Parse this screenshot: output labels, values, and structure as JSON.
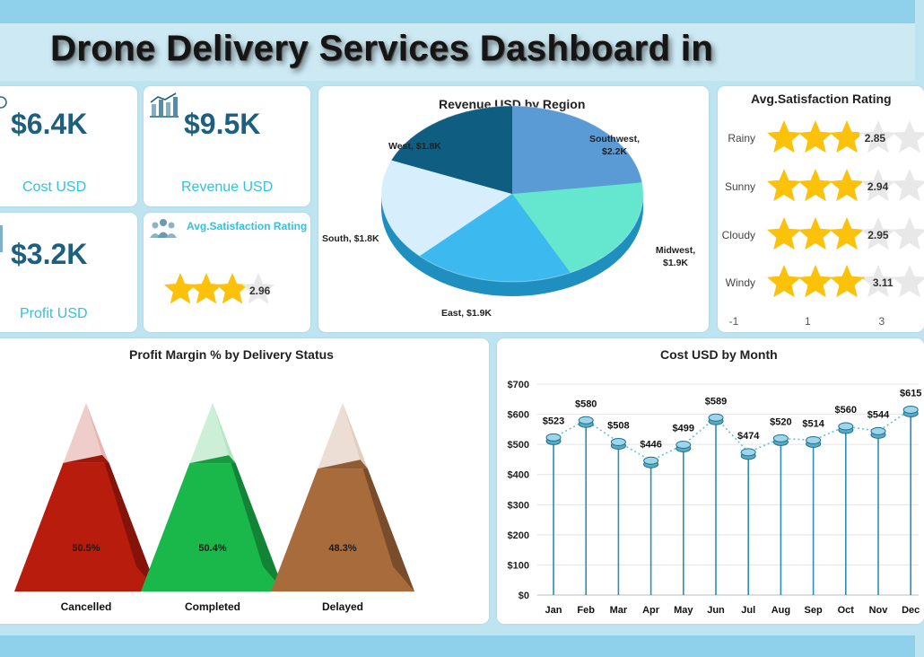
{
  "header": {
    "title": "Drone Delivery Services Dashboard in"
  },
  "kpis": {
    "cost": {
      "value": "$6.4K",
      "label": "Cost USD"
    },
    "revenue": {
      "value": "$9.5K",
      "label": "Revenue USD"
    },
    "profit": {
      "value": "$3.2K",
      "label": "Profit USD"
    },
    "satisfaction": {
      "label": "Avg.Satisfaction Rating",
      "value": "2.96",
      "rating": 2.96,
      "max_stars": 4
    }
  },
  "colors": {
    "kpi_value": "#1d5f7e",
    "kpi_label": "#35c0dc",
    "star": "#fcc20a",
    "star_empty": "#e8e8e8",
    "frame": "#8fd1ea",
    "cost_line": "#2a8fb0"
  },
  "chart_data": [
    {
      "type": "pie",
      "title": "Revenue USD by Region",
      "categories": [
        "Southwest",
        "Midwest",
        "East",
        "South",
        "West"
      ],
      "values": [
        2.2,
        1.9,
        1.9,
        1.8,
        1.8
      ],
      "labels": [
        "Southwest,\n$2.2K",
        "Midwest,\n$1.9K",
        "East, $1.9K",
        "South, $1.8K",
        "West, $1.8K"
      ],
      "colors": [
        "#5b9bd5",
        "#64e6cf",
        "#3cbaf0",
        "#d7effc",
        "#0f5d80"
      ]
    },
    {
      "type": "bar",
      "title": "Avg.Satisfaction Rating",
      "categories": [
        "Rainy",
        "Sunny",
        "Cloudy",
        "Windy"
      ],
      "values": [
        2.85,
        2.94,
        2.95,
        3.11
      ],
      "value_labels": [
        "2.85",
        "2.94",
        "2.95",
        "3.11"
      ],
      "x_ticks": [
        "-1",
        "1",
        "3"
      ],
      "xlim": [
        -1,
        4
      ],
      "orientation": "horizontal",
      "mark": "stars"
    },
    {
      "type": "bar",
      "title": "Profit Margin % by Delivery Status",
      "categories": [
        "Cancelled",
        "Completed",
        "Delayed"
      ],
      "values": [
        50.5,
        50.4,
        48.3
      ],
      "value_labels": [
        "50.5%",
        "50.4%",
        "48.3%"
      ],
      "mark": "pyramid",
      "colors": [
        "#b71c0c",
        "#1ab74a",
        "#a86b3c"
      ]
    },
    {
      "type": "line",
      "title": "Cost USD by Month",
      "categories": [
        "Jan",
        "Feb",
        "Mar",
        "Apr",
        "May",
        "Jun",
        "Jul",
        "Aug",
        "Sep",
        "Oct",
        "Nov",
        "Dec"
      ],
      "values": [
        523,
        580,
        508,
        446,
        499,
        589,
        474,
        520,
        514,
        560,
        544,
        615
      ],
      "value_labels": [
        "$523",
        "$580",
        "$508",
        "$446",
        "$499",
        "$589",
        "$474",
        "$520",
        "$514",
        "$560",
        "$544",
        "$615"
      ],
      "y_ticks": [
        "$0",
        "$100",
        "$200",
        "$300",
        "$400",
        "$500",
        "$600",
        "$700"
      ],
      "ylim": [
        0,
        700
      ],
      "grid": true
    }
  ]
}
